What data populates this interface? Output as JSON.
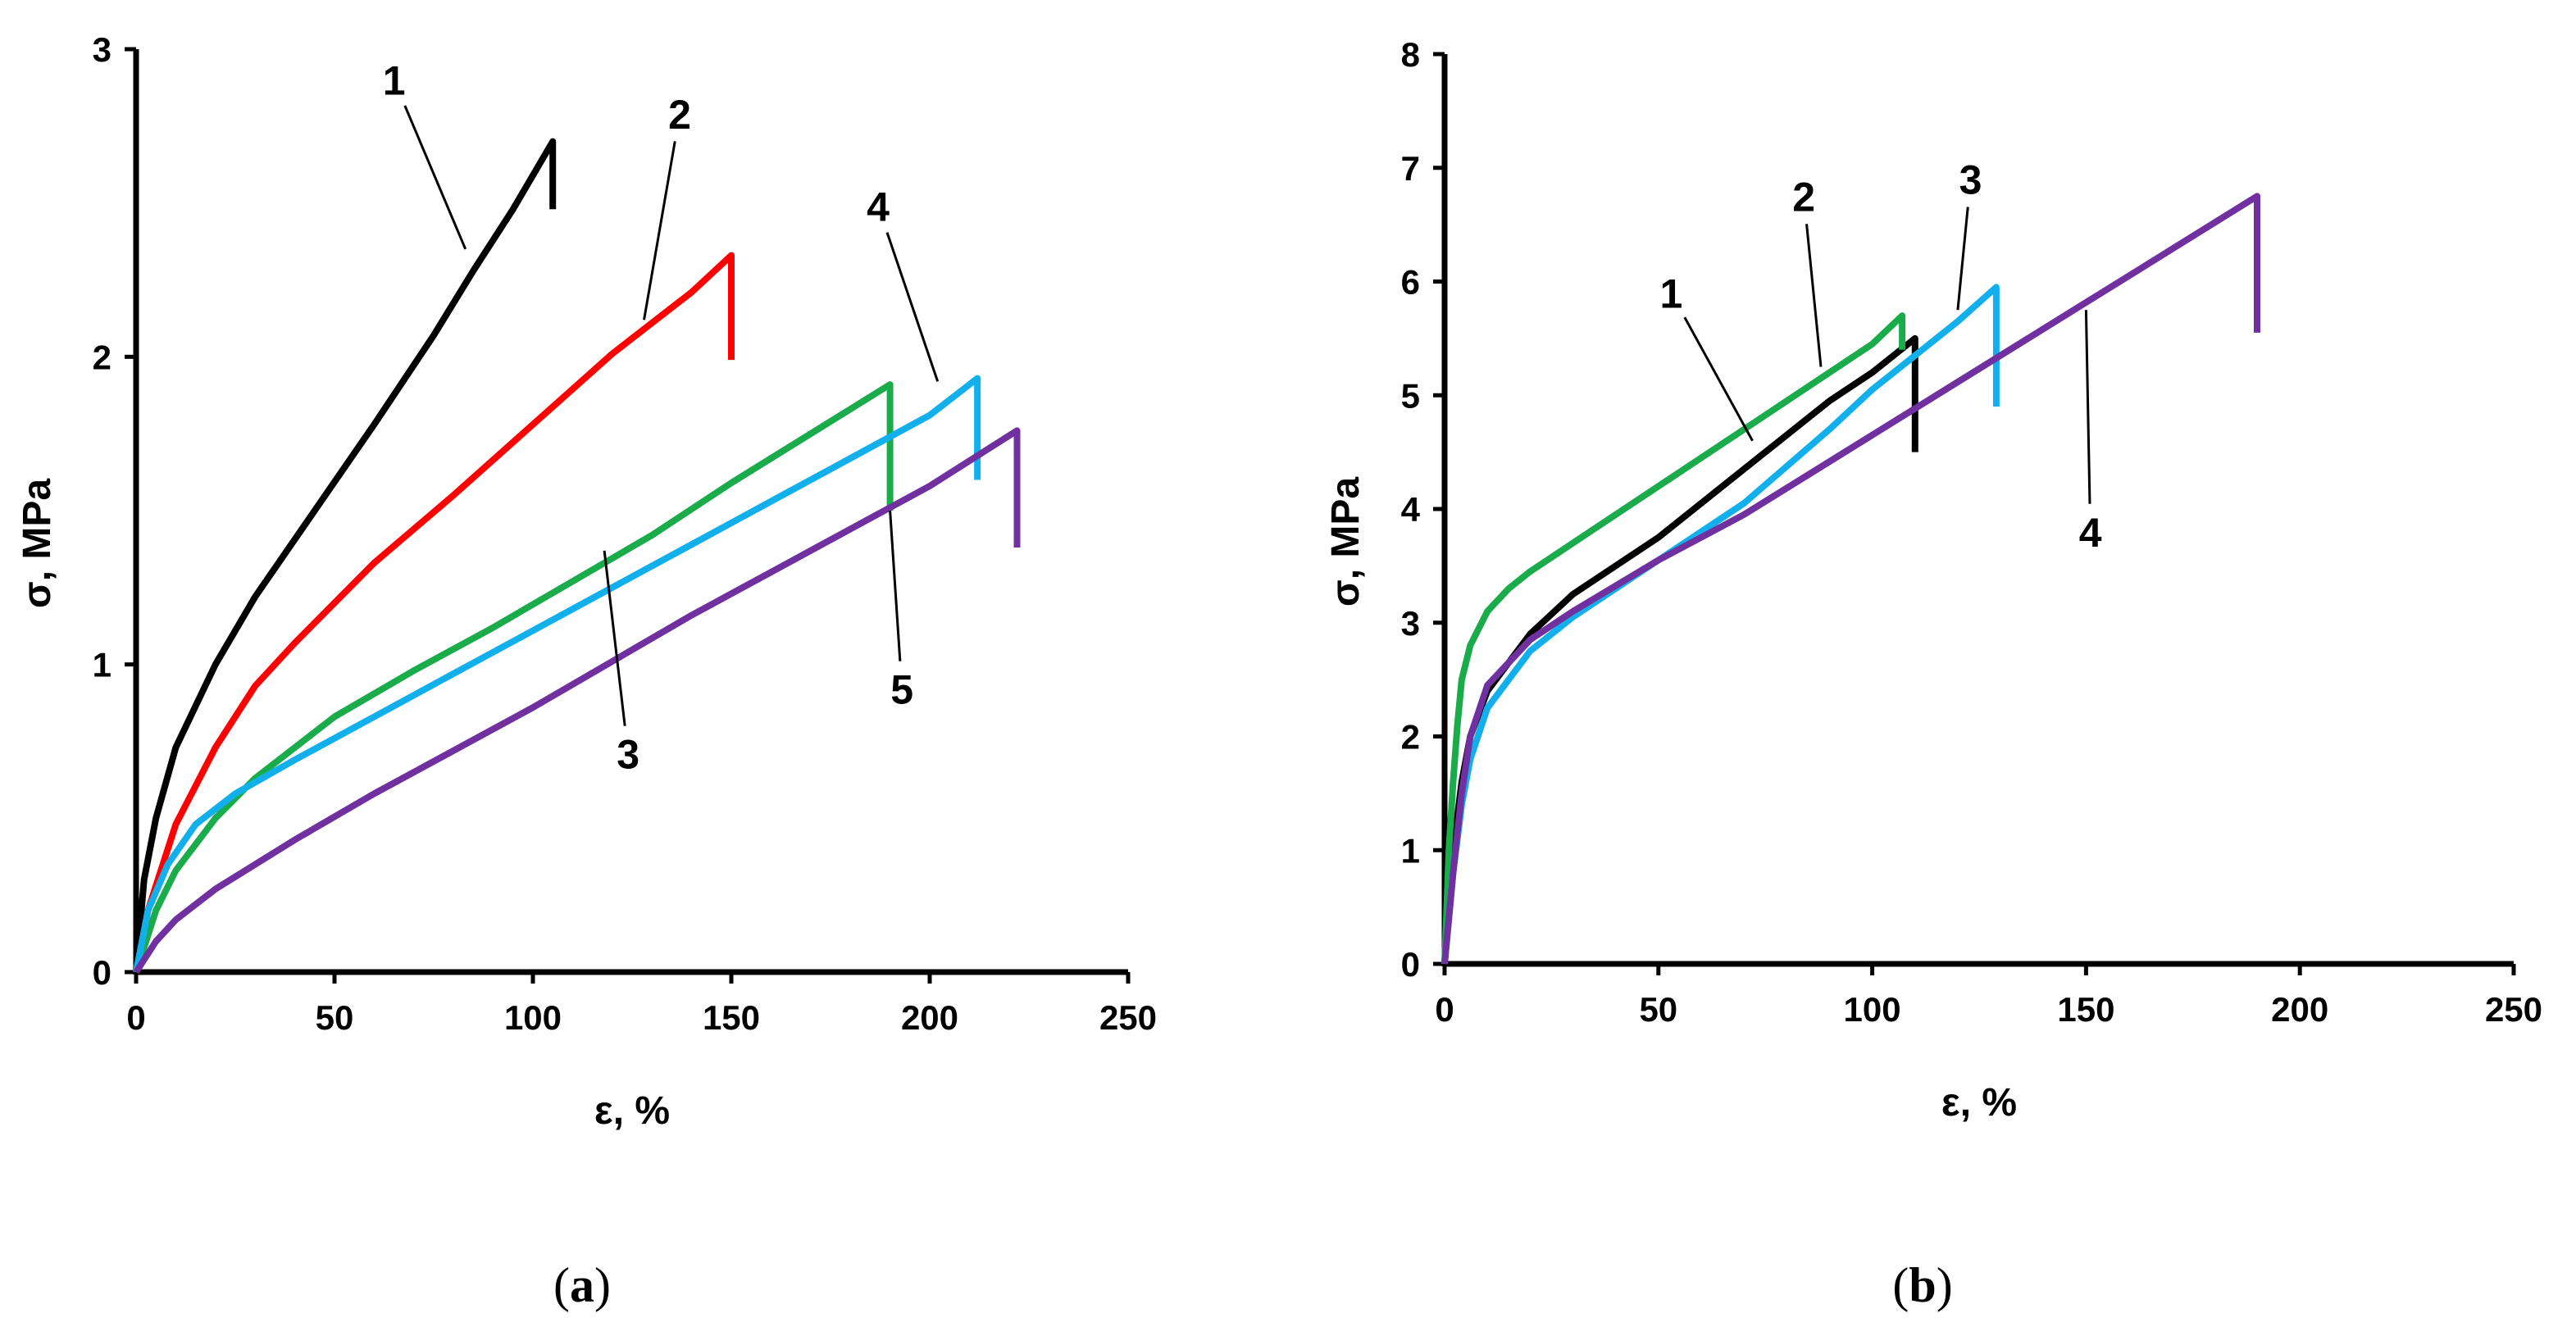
{
  "colors": {
    "black": "#000000",
    "red": "#ff0000",
    "green": "#1aab4b",
    "blue": "#11b0ec",
    "purple": "#7030a0"
  },
  "chart_data": [
    {
      "type": "line",
      "panel": "a",
      "panel_label": {
        "open": "(",
        "letter": "a",
        "close": ")"
      },
      "xlabel": "ε, %",
      "ylabel": "σ, MPa",
      "xlim": [
        0,
        250
      ],
      "ylim": [
        0,
        3
      ],
      "xticks": [
        "0",
        "50",
        "100",
        "150",
        "200",
        "250"
      ],
      "yticks": [
        "0",
        "1",
        "2",
        "3"
      ],
      "series": [
        {
          "name": "1",
          "color": "black",
          "x": [
            0,
            2,
            5,
            10,
            20,
            30,
            45,
            60,
            75,
            85,
            95,
            105
          ],
          "y": [
            0,
            0.3,
            0.5,
            0.73,
            1.0,
            1.22,
            1.5,
            1.78,
            2.07,
            2.28,
            2.48,
            2.7
          ],
          "break_y": 2.48
        },
        {
          "name": "2",
          "color": "red",
          "x": [
            0,
            3,
            10,
            20,
            30,
            40,
            60,
            80,
            100,
            120,
            140,
            150
          ],
          "y": [
            0,
            0.2,
            0.48,
            0.73,
            0.93,
            1.07,
            1.33,
            1.55,
            1.78,
            2.01,
            2.21,
            2.33
          ],
          "break_y": 1.99
        },
        {
          "name": "3",
          "color": "green",
          "x": [
            0,
            5,
            10,
            20,
            30,
            50,
            70,
            90,
            110,
            130,
            150,
            170,
            190
          ],
          "y": [
            0,
            0.2,
            0.33,
            0.5,
            0.63,
            0.83,
            0.98,
            1.12,
            1.27,
            1.42,
            1.59,
            1.75,
            1.91
          ],
          "break_y": 1.5
        },
        {
          "name": "4",
          "color": "blue",
          "x": [
            0,
            3,
            8,
            15,
            25,
            40,
            60,
            80,
            100,
            120,
            140,
            160,
            180,
            200,
            212
          ],
          "y": [
            0,
            0.2,
            0.35,
            0.48,
            0.58,
            0.69,
            0.83,
            0.97,
            1.11,
            1.25,
            1.39,
            1.53,
            1.67,
            1.81,
            1.93
          ],
          "break_y": 1.6
        },
        {
          "name": "5",
          "color": "purple",
          "x": [
            0,
            5,
            10,
            20,
            40,
            60,
            80,
            100,
            120,
            140,
            160,
            180,
            200,
            222
          ],
          "y": [
            0,
            0.1,
            0.17,
            0.27,
            0.43,
            0.58,
            0.72,
            0.86,
            1.01,
            1.16,
            1.3,
            1.44,
            1.58,
            1.76
          ],
          "break_y": 1.38
        }
      ],
      "annotations": [
        {
          "text": "1",
          "x": 65,
          "y": 2.9,
          "tx": 83,
          "ty": 2.35
        },
        {
          "text": "2",
          "x": 137,
          "y": 2.79,
          "tx": 128,
          "ty": 2.12
        },
        {
          "text": "3",
          "x": 124,
          "y": 0.71,
          "tx": 118,
          "ty": 1.37
        },
        {
          "text": "4",
          "x": 187,
          "y": 2.49,
          "tx": 202,
          "ty": 1.92
        },
        {
          "text": "5",
          "x": 193,
          "y": 0.92,
          "tx": 190,
          "ty": 1.5
        }
      ]
    },
    {
      "type": "line",
      "panel": "b",
      "panel_label": {
        "open": "(",
        "letter": "b",
        "close": ")"
      },
      "xlabel": "ε, %",
      "ylabel": "σ, MPa",
      "xlim": [
        0,
        250
      ],
      "ylim": [
        0,
        8
      ],
      "xticks": [
        "0",
        "50",
        "100",
        "150",
        "200",
        "250"
      ],
      "yticks": [
        "0",
        "1",
        "2",
        "3",
        "4",
        "5",
        "6",
        "7",
        "8"
      ],
      "series": [
        {
          "name": "1",
          "color": "black",
          "x": [
            0,
            2,
            4,
            6,
            10,
            20,
            30,
            50,
            70,
            90,
            100,
            110
          ],
          "y": [
            0,
            1.0,
            1.6,
            2.0,
            2.4,
            2.9,
            3.25,
            3.75,
            4.35,
            4.95,
            5.2,
            5.5
          ],
          "break_y": 4.5
        },
        {
          "name": "2",
          "color": "green",
          "x": [
            0,
            1,
            2,
            3,
            4,
            6,
            10,
            15,
            20,
            30,
            40,
            60,
            80,
            100,
            107
          ],
          "y": [
            0,
            1.0,
            1.6,
            2.1,
            2.5,
            2.8,
            3.1,
            3.3,
            3.45,
            3.7,
            3.95,
            4.45,
            4.95,
            5.45,
            5.7
          ],
          "break_y": 5.4
        },
        {
          "name": "3",
          "color": "blue",
          "x": [
            0,
            2,
            4,
            6,
            10,
            20,
            30,
            50,
            70,
            90,
            100,
            110,
            120,
            129
          ],
          "y": [
            0,
            0.8,
            1.4,
            1.8,
            2.25,
            2.75,
            3.05,
            3.55,
            4.05,
            4.7,
            5.05,
            5.35,
            5.65,
            5.95
          ],
          "break_y": 4.9
        },
        {
          "name": "4",
          "color": "purple",
          "x": [
            0,
            2,
            4,
            6,
            10,
            20,
            30,
            50,
            70,
            100,
            130,
            160,
            190
          ],
          "y": [
            0,
            0.8,
            1.5,
            2.0,
            2.45,
            2.85,
            3.1,
            3.55,
            3.95,
            4.65,
            5.35,
            6.05,
            6.75
          ],
          "break_y": 5.55
        }
      ],
      "annotations": [
        {
          "text": "1",
          "x": 53,
          "y": 5.9,
          "tx": 72,
          "ty": 4.6
        },
        {
          "text": "2",
          "x": 84,
          "y": 6.75,
          "tx": 88,
          "ty": 5.25
        },
        {
          "text": "3",
          "x": 123,
          "y": 6.9,
          "tx": 120,
          "ty": 5.75
        },
        {
          "text": "4",
          "x": 151,
          "y": 3.8,
          "tx": 150,
          "ty": 5.75
        }
      ]
    }
  ]
}
